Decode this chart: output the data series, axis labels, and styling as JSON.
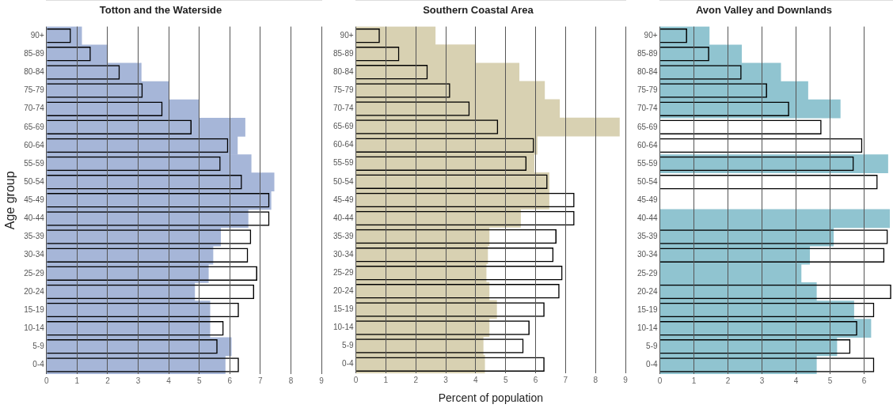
{
  "chart_data": [
    {
      "type": "bar",
      "orientation": "horizontal",
      "title": "Totton and the Waterside",
      "ylabel": "Age group",
      "categories": [
        "90+",
        "85-89",
        "80-84",
        "75-79",
        "70-74",
        "65-69",
        "60-64",
        "55-59",
        "50-54",
        "45-49",
        "40-44",
        "35-39",
        "30-34",
        "25-29",
        "20-24",
        "15-19",
        "10-14",
        "5-9",
        "0-4"
      ],
      "series": [
        {
          "color": "#a6b6d8",
          "values": [
            1.15,
            2.0,
            3.1,
            4.0,
            5.0,
            6.5,
            6.25,
            6.7,
            7.45,
            7.35,
            6.6,
            5.7,
            5.45,
            5.3,
            4.85,
            5.35,
            5.35,
            6.05,
            5.85
          ]
        },
        {
          "color": "#000000",
          "values": [
            0.8,
            1.45,
            2.4,
            3.15,
            3.8,
            4.75,
            5.95,
            5.7,
            6.4,
            7.3,
            7.3,
            6.7,
            6.6,
            6.9,
            6.8,
            6.3,
            5.8,
            5.6,
            6.3
          ]
        }
      ],
      "xlim": [
        0,
        9
      ],
      "xticks": [
        0,
        1,
        2,
        3,
        4,
        5,
        6,
        7,
        8,
        9
      ],
      "grid": "x"
    },
    {
      "type": "bar",
      "orientation": "horizontal",
      "title": "Southern Coastal Area",
      "xlabel": "Percent of population",
      "categories": [
        "90+",
        "85-89",
        "80-84",
        "75-79",
        "70-74",
        "65-69",
        "60-64",
        "55-59",
        "50-54",
        "45-49",
        "40-44",
        "35-39",
        "30-34",
        "25-29",
        "20-24",
        "15-19",
        "10-14",
        "5-9",
        "0-4"
      ],
      "series": [
        {
          "color": "#d8d1b2",
          "values": [
            2.65,
            4.0,
            5.45,
            6.3,
            6.8,
            8.8,
            6.05,
            5.95,
            6.45,
            6.45,
            5.5,
            4.45,
            4.4,
            4.35,
            4.45,
            4.7,
            4.45,
            4.25,
            4.3
          ]
        },
        {
          "color": "#000000",
          "values": [
            0.8,
            1.45,
            2.4,
            3.15,
            3.8,
            4.75,
            5.95,
            5.7,
            6.4,
            7.3,
            7.3,
            6.7,
            6.6,
            6.9,
            6.8,
            6.3,
            5.8,
            5.6,
            6.3
          ]
        }
      ],
      "xlim": [
        0,
        9
      ],
      "xticks": [
        0,
        1,
        2,
        3,
        4,
        5,
        6,
        7,
        8,
        9
      ],
      "grid": "x"
    },
    {
      "type": "bar",
      "orientation": "horizontal",
      "title": "Avon Valley and Downlands",
      "categories": [
        "90+",
        "85-89",
        "80-84",
        "75-79",
        "70-74",
        "65-69",
        "60-64",
        "55-59",
        "50-54",
        "45-49",
        "40-44",
        "35-39",
        "30-34",
        "25-29",
        "20-24",
        "15-19",
        "10-14",
        "5-9",
        "0-4"
      ],
      "series": [
        {
          "color": "#90c4d0",
          "values": [
            1.45,
            2.4,
            3.55,
            4.35,
            5.3,
            null,
            null,
            6.7,
            null,
            null,
            6.75,
            5.1,
            4.4,
            4.15,
            4.6,
            5.7,
            6.2,
            5.2,
            4.6
          ]
        },
        {
          "color": "#000000",
          "values": [
            0.8,
            1.45,
            2.4,
            3.15,
            3.8,
            4.75,
            5.95,
            5.7,
            6.4,
            null,
            null,
            6.7,
            6.6,
            null,
            6.8,
            6.3,
            5.8,
            5.6,
            6.3
          ]
        }
      ],
      "xlim": [
        0,
        6.85
      ],
      "xticks": [
        0,
        1,
        2,
        3,
        4,
        5,
        6
      ],
      "grid": "x"
    }
  ]
}
